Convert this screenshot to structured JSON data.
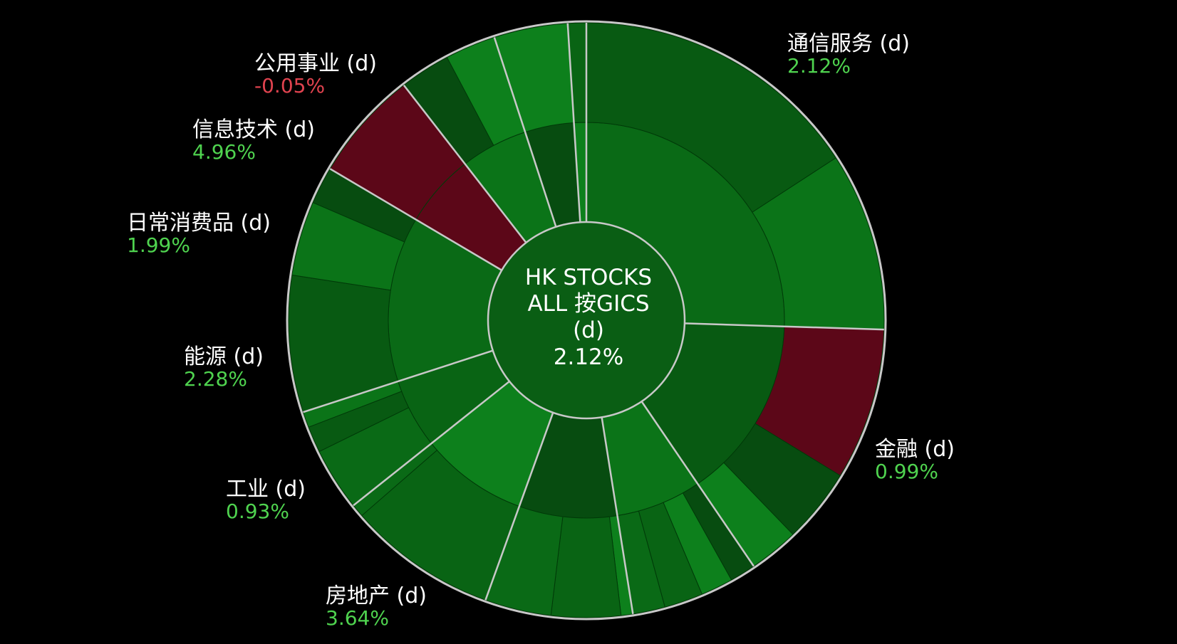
{
  "chart_data": {
    "type": "sunburst",
    "center": {
      "title_line1": "HK STOCKS",
      "title_line2": "ALL 按GICS",
      "title_line3": "(d)",
      "value": "2.12%"
    },
    "sectors": [
      {
        "name": "通信服务 (d)",
        "value": "2.12%",
        "direction": "up",
        "share": 0.255
      },
      {
        "name": "金融 (d)",
        "value": "0.99%",
        "direction": "up",
        "share": 0.15
      },
      {
        "name": "房地产 (d)",
        "value": "3.64%",
        "direction": "up",
        "share": 0.07
      },
      {
        "name": "工业 (d)",
        "value": "0.93%",
        "direction": "up",
        "share": 0.08
      },
      {
        "name": "能源 (d)",
        "value": "2.28%",
        "direction": "up",
        "share": 0.088
      },
      {
        "name": "日常消费品 (d)",
        "value": "1.99%",
        "direction": "up",
        "share": 0.057
      },
      {
        "name": "信息技术 (d)",
        "value": "4.96%",
        "direction": "up",
        "share": 0.135
      },
      {
        "name": "公用事业 (d)",
        "value": "-0.05%",
        "direction": "down",
        "share": 0.06
      },
      {
        "name": "",
        "value": "",
        "direction": "up",
        "share": 0.055
      },
      {
        "name": "",
        "value": "",
        "direction": "up",
        "share": 0.04
      },
      {
        "name": "",
        "value": "",
        "direction": "up",
        "share": 0.01
      }
    ],
    "colors": {
      "background": "#000000",
      "positive_text": "#4fd34f",
      "negative_text": "#e0434f",
      "positive_fill": "#0a5e14",
      "negative_fill": "#5c0718",
      "separator": "#c8c8c8"
    }
  }
}
